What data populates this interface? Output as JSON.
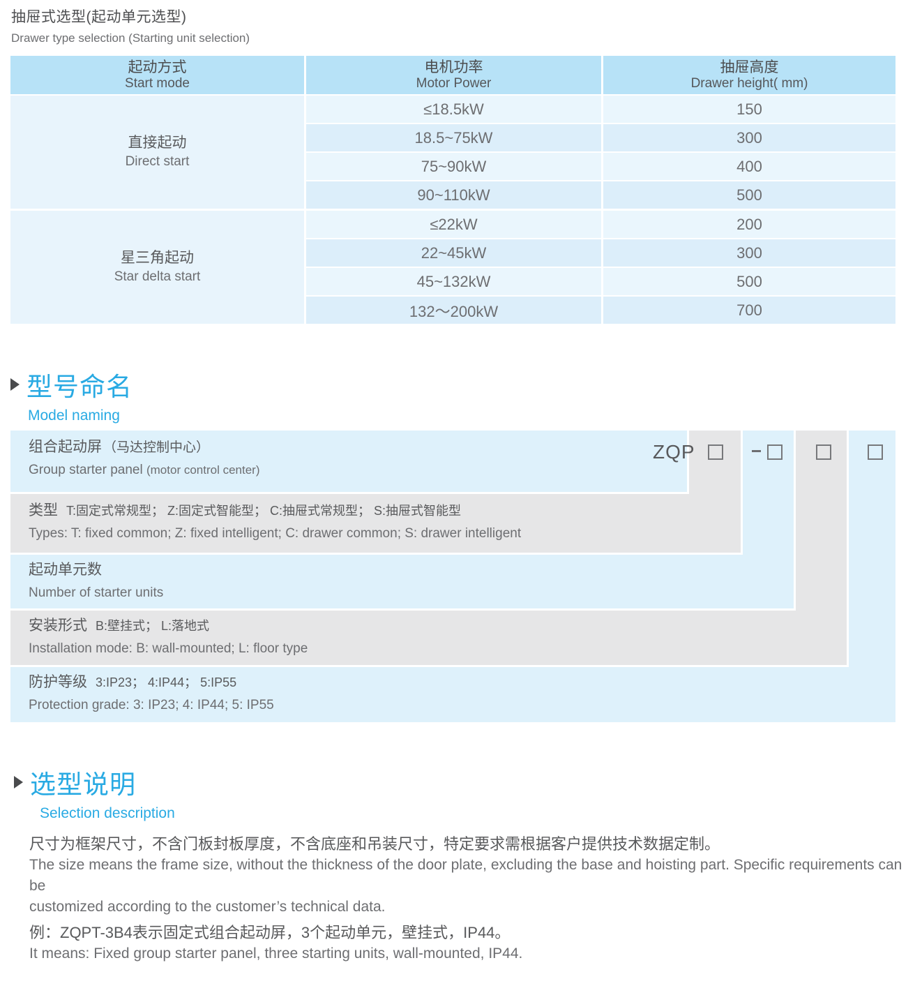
{
  "colors": {
    "accent_blue": "#29aae3",
    "table_header_bg": "#b7e2f7",
    "table_row_light": "#eaf6fd",
    "table_row_dark": "#dceefa",
    "diagram_blue": "#def1fb",
    "diagram_gray": "#e6e6e7",
    "text_dark": "#4d4e50",
    "text_gray": "#6d6e71"
  },
  "page": {
    "title_zh": "抽屉式选型(起动单元选型)",
    "title_en": "Drawer type selection (Starting unit selection)"
  },
  "selection_table": {
    "columns": [
      {
        "zh": "起动方式",
        "en": "Start mode"
      },
      {
        "zh": "电机功率",
        "en": "Motor Power"
      },
      {
        "zh": "抽屉高度",
        "en": "Drawer height( mm)"
      }
    ],
    "groups": [
      {
        "mode_zh": "直接起动",
        "mode_en": "Direct start",
        "rows": [
          {
            "power": "≤18.5kW",
            "height": "150"
          },
          {
            "power": "18.5~75kW",
            "height": "300"
          },
          {
            "power": "75~90kW",
            "height": "400"
          },
          {
            "power": "90~110kW",
            "height": "500"
          }
        ]
      },
      {
        "mode_zh": "星三角起动",
        "mode_en": "Star delta start",
        "rows": [
          {
            "power": "≤22kW",
            "height": "200"
          },
          {
            "power": "22~45kW",
            "height": "300"
          },
          {
            "power": "45~132kW",
            "height": "500"
          },
          {
            "power": "132～200kW",
            "height": "700"
          }
        ]
      }
    ]
  },
  "model_naming": {
    "title_zh": "型号命名",
    "title_en": "Model naming",
    "code_prefix": "ZQP",
    "dash": "-",
    "placeholder_box_count": 4,
    "rows": [
      {
        "zh_label": "组合起动屏",
        "zh_note": "（马达控制中心）",
        "en": "Group starter panel",
        "en_note": "(motor control center)"
      },
      {
        "zh_label": "类型",
        "zh_note": "T:固定式常规型； Z:固定式智能型； C:抽屉式常规型； S:抽屉式智能型",
        "en": "Types: T: fixed common; Z: fixed intelligent; C: drawer common; S: drawer intelligent",
        "en_note": ""
      },
      {
        "zh_label": "起动单元数",
        "zh_note": "",
        "en": "Number of starter units",
        "en_note": ""
      },
      {
        "zh_label": "安装形式",
        "zh_note": "B:壁挂式； L:落地式",
        "en": "Installation mode: B: wall-mounted; L: floor type",
        "en_note": ""
      },
      {
        "zh_label": "防护等级",
        "zh_note": "3:IP23； 4:IP44； 5:IP55",
        "en": "Protection grade:  3: IP23; 4: IP44; 5: IP55",
        "en_note": ""
      }
    ]
  },
  "selection_description": {
    "title_zh": "选型说明",
    "title_en": "Selection description",
    "lines": [
      "尺寸为框架尺寸，不含门板封板厚度，不含底座和吊装尺寸，特定要求需根据客户提供技术数据定制。",
      "The size means the frame size, without the thickness of the door plate, excluding the base and hoisting part. Specific requirements can be",
      "customized according to the customer’s technical data.",
      "例：ZQPT-3B4表示固定式组合起动屏，3个起动单元，壁挂式，IP44。",
      "It means: Fixed group starter panel, three starting units, wall-mounted, IP44."
    ]
  }
}
